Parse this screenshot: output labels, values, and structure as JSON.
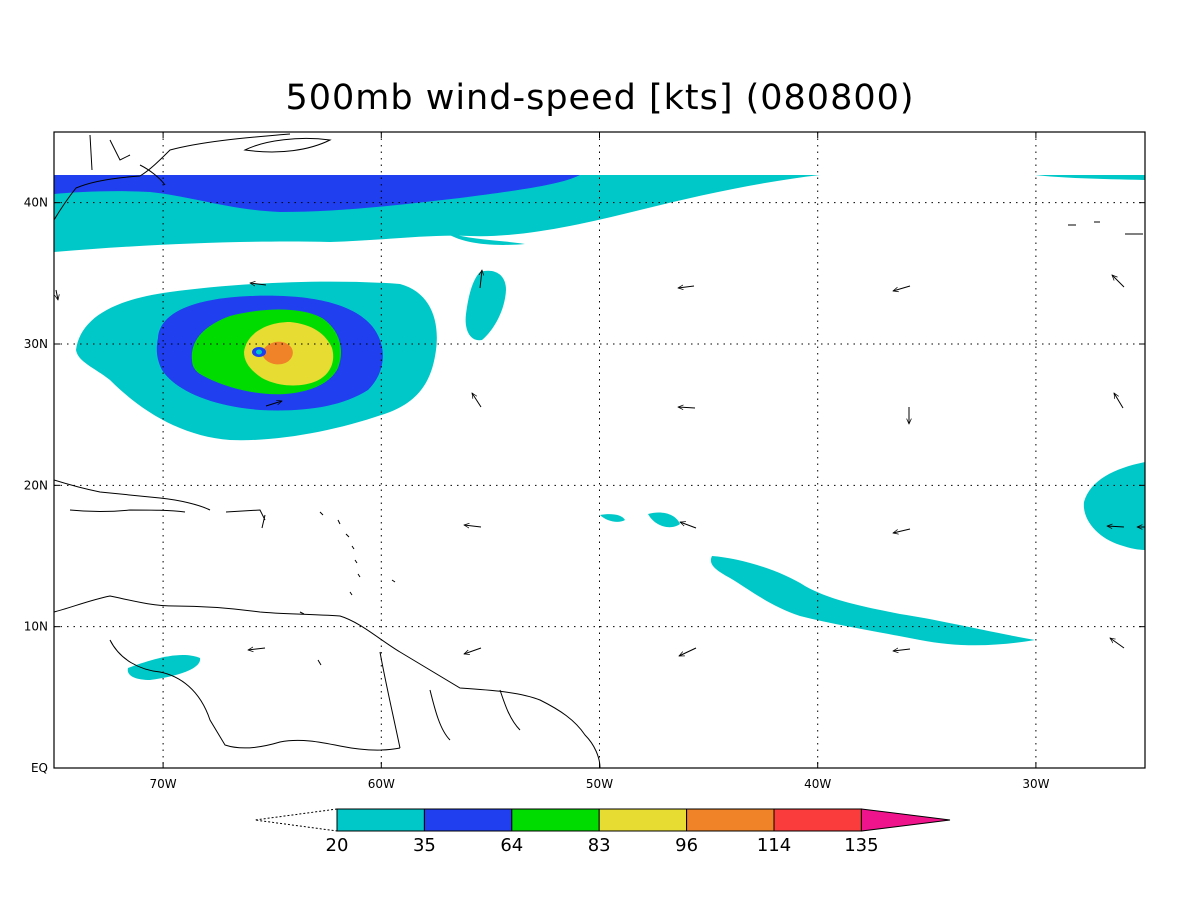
{
  "title": "500mb wind-speed [kts] (080800)",
  "axes": {
    "lon_ticks": [
      "70W",
      "60W",
      "50W",
      "40W",
      "30W"
    ],
    "lat_ticks": [
      "40N",
      "30N",
      "20N",
      "10N",
      "EQ"
    ],
    "lon_range": [
      -75,
      -25
    ],
    "lat_range": [
      0,
      45
    ],
    "grid": true
  },
  "colorbar": {
    "levels": [
      "20",
      "35",
      "64",
      "83",
      "96",
      "114",
      "135"
    ],
    "colors": [
      "#00c8c8",
      "#2040f0",
      "#00dc00",
      "#e6dc32",
      "#f08228",
      "#fa3c3c",
      "#f0148c"
    ]
  },
  "features": {
    "hurricane_center": {
      "lon": -65.5,
      "lat": 30
    },
    "vector_field": "wind-arrows"
  }
}
